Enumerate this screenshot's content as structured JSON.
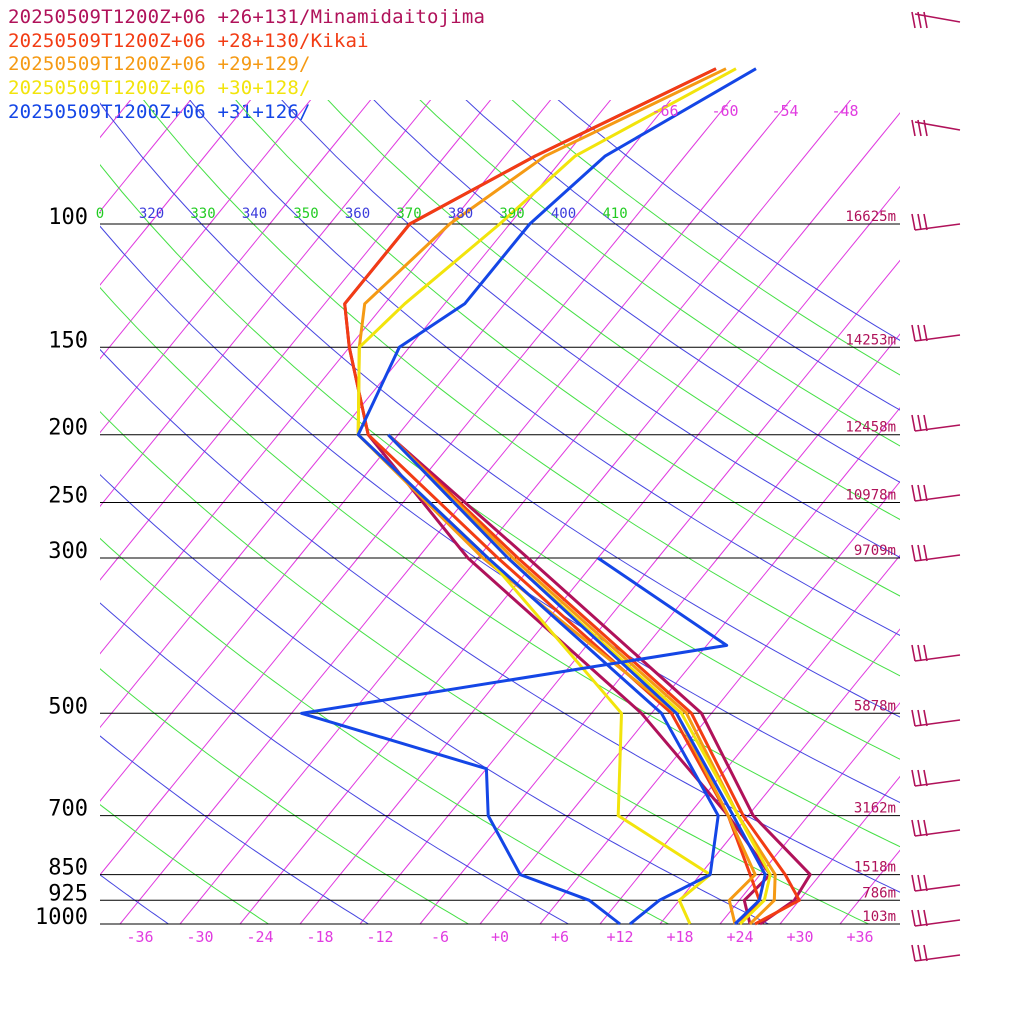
{
  "chart_data": {
    "type": "line",
    "subtype": "skew-T log-P sounding",
    "legend": [
      {
        "label": "20250509T1200Z+06 +26+131/Minamidaitojima",
        "color": "#b0125a"
      },
      {
        "label": "20250509T1200Z+06 +28+130/Kikai",
        "color": "#f23c14"
      },
      {
        "label": "20250509T1200Z+06 +29+129/",
        "color": "#f59a14"
      },
      {
        "label": "20250509T1200Z+06 +30+128/",
        "color": "#f2e40c"
      },
      {
        "label": "20250509T1200Z+06 +31+126/",
        "color": "#1446e6"
      }
    ],
    "pressure_levels": [
      {
        "p": 100,
        "label": "100",
        "height": "16625m"
      },
      {
        "p": 150,
        "label": "150",
        "height": "14253m"
      },
      {
        "p": 200,
        "label": "200",
        "height": "12458m"
      },
      {
        "p": 250,
        "label": "250",
        "height": "10978m"
      },
      {
        "p": 300,
        "label": "300",
        "height": "9709m"
      },
      {
        "p": 500,
        "label": "500",
        "height": "5878m"
      },
      {
        "p": 700,
        "label": "700",
        "height": "3162m"
      },
      {
        "p": 850,
        "label": "850",
        "height": "1518m"
      },
      {
        "p": 925,
        "label": "925",
        "height": "786m"
      },
      {
        "p": 1000,
        "label": "1000",
        "height": "103m"
      }
    ],
    "x_ticks": [
      "-36",
      "-30",
      "-24",
      "-18",
      "-12",
      "-6",
      "+0",
      "+6",
      "+12",
      "+18",
      "+24",
      "+30",
      "+36"
    ],
    "top_isotherm_labels": [
      "-66",
      "-60",
      "-54",
      "-48"
    ],
    "theta_labels": [
      {
        "t": "0",
        "c": "#22cc22"
      },
      {
        "t": "320",
        "c": "#3c3cdc"
      },
      {
        "t": "330",
        "c": "#22cc22"
      },
      {
        "t": "340",
        "c": "#3c3cdc"
      },
      {
        "t": "350",
        "c": "#22cc22"
      },
      {
        "t": "360",
        "c": "#3c3cdc"
      },
      {
        "t": "370",
        "c": "#22cc22"
      },
      {
        "t": "380",
        "c": "#3c3cdc"
      },
      {
        "t": "390",
        "c": "#22cc22"
      },
      {
        "t": "400",
        "c": "#3c3cdc"
      },
      {
        "t": "410",
        "c": "#22cc22"
      }
    ],
    "series": [
      {
        "name": "20250509T1200Z+06 +26+131/Minamidaitojima",
        "color": "#b0125a",
        "points": [
          [
            1000,
            25
          ],
          [
            925,
            22.5
          ],
          [
            850,
            23
          ],
          [
            700,
            14
          ],
          [
            500,
            -3
          ],
          [
            300,
            -33
          ],
          [
            200,
            -53
          ],
          [
            150,
            -62
          ],
          [
            130,
            -66
          ],
          [
            100,
            -66
          ],
          [
            80,
            -59
          ],
          [
            60,
            -48
          ]
        ]
      },
      {
        "name": "20250509T1200Z+06 +28+130/Kikai",
        "color": "#f23c14",
        "points": [
          [
            1000,
            24
          ],
          [
            925,
            24
          ],
          [
            850,
            21
          ],
          [
            700,
            14
          ],
          [
            500,
            0
          ],
          [
            300,
            -30
          ],
          [
            200,
            -53
          ],
          [
            150,
            -62
          ],
          [
            130,
            -66
          ],
          [
            100,
            -66
          ],
          [
            80,
            -59
          ],
          [
            60,
            -48
          ]
        ]
      },
      {
        "name": "20250509T1200Z+06 +29+129/",
        "color": "#f59a14",
        "points": [
          [
            1000,
            23.5
          ],
          [
            925,
            21
          ],
          [
            850,
            21.5
          ],
          [
            700,
            14
          ],
          [
            500,
            0.5
          ],
          [
            300,
            -31.5
          ],
          [
            200,
            -54
          ],
          [
            150,
            -61
          ],
          [
            130,
            -64
          ],
          [
            100,
            -62
          ],
          [
            80,
            -58
          ],
          [
            60,
            -47
          ]
        ]
      },
      {
        "name": "20250509T1200Z+06 +30+128/",
        "color": "#f2e40c",
        "points": [
          [
            1000,
            19
          ],
          [
            925,
            16
          ],
          [
            850,
            17
          ],
          [
            700,
            3
          ],
          [
            500,
            -5
          ],
          [
            300,
            -31
          ],
          [
            200,
            -54
          ],
          [
            150,
            -61
          ],
          [
            130,
            -60
          ],
          [
            100,
            -57
          ],
          [
            80,
            -55
          ],
          [
            60,
            -46
          ]
        ]
      },
      {
        "name": "20250509T1200Z+06 +31+126/",
        "color": "#1446e6",
        "points": [
          [
            1000,
            13
          ],
          [
            925,
            14
          ],
          [
            850,
            17
          ],
          [
            700,
            13
          ],
          [
            500,
            -1
          ],
          [
            300,
            -31
          ],
          [
            200,
            -54
          ],
          [
            150,
            -57
          ],
          [
            130,
            -54
          ],
          [
            100,
            -54
          ],
          [
            80,
            -52
          ],
          [
            60,
            -44
          ]
        ]
      },
      {
        "name": "",
        "color": "#b0125a",
        "points": [
          [
            1000,
            26
          ],
          [
            925,
            27.5
          ],
          [
            850,
            27
          ],
          [
            700,
            16.5
          ],
          [
            500,
            3
          ],
          [
            300,
            -27
          ],
          [
            200,
            -51
          ]
        ]
      },
      {
        "name": "",
        "color": "#f23c14",
        "points": [
          [
            1000,
            25.5
          ],
          [
            925,
            28
          ],
          [
            850,
            24.5
          ],
          [
            700,
            15.5
          ],
          [
            500,
            2
          ],
          [
            300,
            -28
          ],
          [
            200,
            -51
          ]
        ]
      },
      {
        "name": "",
        "color": "#f59a14",
        "points": [
          [
            1000,
            25
          ],
          [
            925,
            25.5
          ],
          [
            850,
            23.5
          ],
          [
            700,
            15
          ],
          [
            500,
            1.5
          ],
          [
            300,
            -28.5
          ],
          [
            200,
            -51
          ]
        ]
      },
      {
        "name": "",
        "color": "#f2e40c",
        "points": [
          [
            1000,
            24
          ],
          [
            925,
            24.5
          ],
          [
            850,
            23
          ],
          [
            700,
            15
          ],
          [
            500,
            1
          ],
          [
            300,
            -29
          ],
          [
            200,
            -51
          ]
        ]
      },
      {
        "name": "",
        "color": "#1446e6",
        "points": [
          [
            1000,
            23.5
          ],
          [
            925,
            24
          ],
          [
            850,
            22.5
          ],
          [
            700,
            14.5
          ],
          [
            500,
            0.5
          ],
          [
            300,
            -29
          ],
          [
            200,
            -51
          ]
        ]
      },
      {
        "name": "",
        "color": "#1446e6",
        "points": [
          [
            1000,
            12
          ],
          [
            925,
            7
          ],
          [
            850,
            -2
          ],
          [
            700,
            -10
          ],
          [
            600,
            -14
          ],
          [
            500,
            -37
          ],
          [
            400,
            0
          ],
          [
            300,
            -20
          ]
        ]
      }
    ],
    "x_range": [
      -40,
      40
    ],
    "p_range": [
      100,
      1000
    ],
    "grid": true
  }
}
